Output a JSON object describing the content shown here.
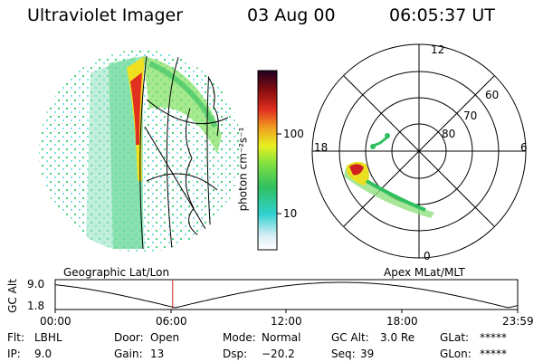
{
  "header": {
    "title": "Ultraviolet Imager",
    "date": "03 Aug 00",
    "time": "06:05:37 UT"
  },
  "colorbar": {
    "label": "photon cm⁻²s⁻¹",
    "tick_high": "100",
    "tick_low": "10"
  },
  "polar": {
    "mlt_labels": [
      "12",
      "18",
      "6",
      "0"
    ],
    "lat_labels": [
      "60",
      "70",
      "80"
    ]
  },
  "panels": {
    "left_caption": "Geographic Lat/Lon",
    "right_caption": "Apex MLat/MLT"
  },
  "timeline": {
    "ylabel": "GC Alt",
    "ytick_top": "9.0",
    "ytick_bottom": "1.8",
    "xticks": [
      "00:00",
      "06:00",
      "12:00",
      "18:00",
      "23:59"
    ],
    "current_fraction": 0.254,
    "colors": {
      "curve": "#000000",
      "marker": "#cc2222"
    }
  },
  "info": {
    "flt_label": "Flt:",
    "flt_value": "LBHL",
    "ip_label": "IP:",
    "ip_value": "9.0",
    "door_label": "Door:",
    "door_value": "Open",
    "gain_label": "Gain:",
    "gain_value": "13",
    "mode_label": "Mode:",
    "mode_value": "Normal",
    "dsp_label": "Dsp:",
    "dsp_value": "−20.2",
    "gcalt_label": "GC Alt:",
    "gcalt_value": "3.0 Re",
    "seq_label": "Seq:",
    "seq_value": "39",
    "glat_label": "GLat:",
    "glat_value": "*****",
    "glon_label": "GLon:",
    "glon_value": "*****"
  }
}
